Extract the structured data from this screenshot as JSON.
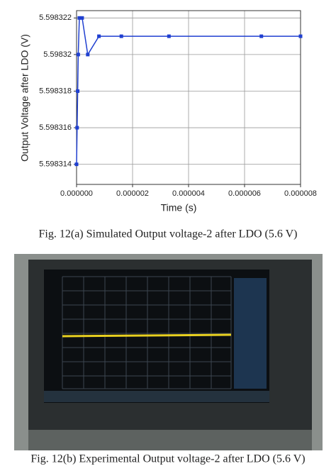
{
  "chart_data": {
    "type": "line",
    "x_label": "Time (s)",
    "y_label": "Output Voltage after LDO (V)",
    "x": [
      0,
      2e-08,
      4e-08,
      6e-08,
      1e-07,
      2e-07,
      4e-07,
      8e-07,
      1.6e-06,
      3.3e-06,
      6.6e-06,
      8e-06
    ],
    "series": [
      {
        "color": "#1f3fd0",
        "values": [
          5.598314,
          5.598316,
          5.598318,
          5.59832,
          5.598322,
          5.598322,
          5.59832,
          5.598321,
          5.598321,
          5.598321,
          5.598321,
          5.598321
        ]
      }
    ],
    "xlim": [
      0,
      8e-06
    ],
    "ylim": [
      5.5983129,
      5.5983224
    ],
    "xticks": [
      {
        "value": 0,
        "label": "0.000000"
      },
      2e-06,
      4e-06,
      6e-06,
      8e-06
    ],
    "yticks": [
      5.598314,
      5.598316,
      5.598318,
      5.59832,
      5.598322
    ],
    "grid": true
  },
  "captions": [
    "Fig. 12(a) Simulated Output voltage-2 after LDO  (5.6 V)",
    "Fig. 12(b) Experimental Output voltage-2 after LDO  (5.6 V)"
  ]
}
